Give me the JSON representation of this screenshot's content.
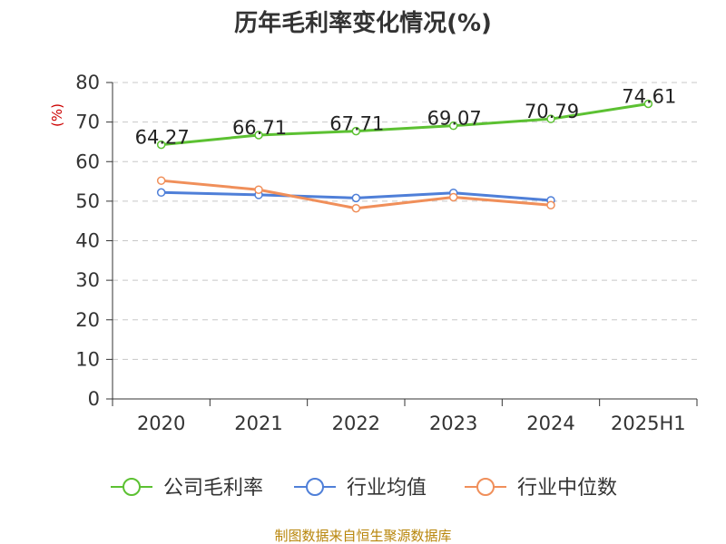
{
  "chart_data": {
    "type": "line",
    "title": "历年毛利率变化情况(%)",
    "ylabel": "(%)",
    "xlabel": "",
    "categories": [
      "2020",
      "2021",
      "2022",
      "2023",
      "2024",
      "2025H1"
    ],
    "ylim": [
      0,
      80
    ],
    "yticks": [
      "0",
      "10",
      "20",
      "30",
      "40",
      "50",
      "60",
      "70",
      "80"
    ],
    "grid": "horizontal dashed",
    "legend_position": "bottom",
    "series": [
      {
        "name": "公司毛利率",
        "color": "#5cc132",
        "values": [
          64.27,
          66.71,
          67.71,
          69.07,
          70.79,
          74.61
        ],
        "labels": [
          "64.27",
          "66.71",
          "67.71",
          "69.07",
          "70.79",
          "74.61"
        ]
      },
      {
        "name": "行业均值",
        "color": "#4f7fd8",
        "values": [
          52.2,
          51.6,
          50.8,
          52.1,
          50.2,
          null
        ]
      },
      {
        "name": "行业中位数",
        "color": "#f08f5a",
        "values": [
          55.2,
          52.9,
          48.2,
          51.0,
          49.0,
          null
        ]
      }
    ]
  },
  "source": "制图数据来自恒生聚源数据库"
}
